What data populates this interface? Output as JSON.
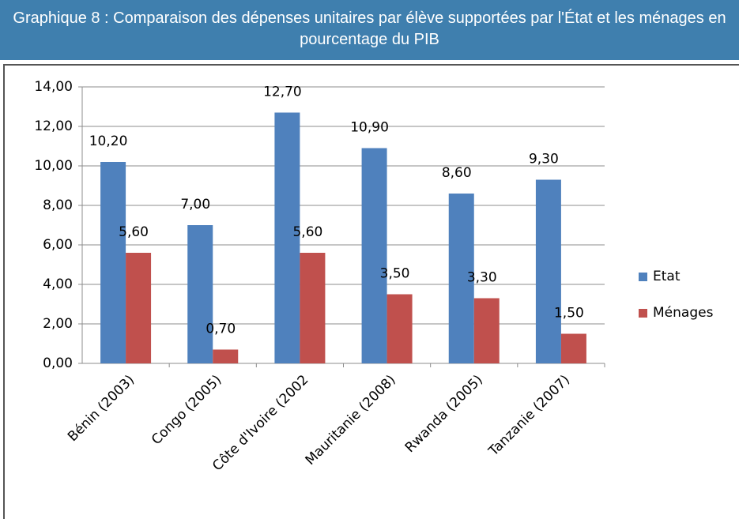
{
  "chart_data": {
    "type": "bar",
    "title": "Graphique 8 : Comparaison des dépenses unitaires par élève supportées par l'État et les ménages en pourcentage du PIB",
    "categories": [
      "Bénin (2003)",
      "Congo (2005)",
      "Côte d'Ivoire (2002",
      "Mauritanie (2008)",
      "Rwanda (2005)",
      "Tanzanie (2007)"
    ],
    "series": [
      {
        "name": "Etat",
        "color": "#4f81bd",
        "values": [
          10.2,
          7.0,
          12.7,
          10.9,
          8.6,
          9.3
        ],
        "value_labels": [
          "10,20",
          "7,00",
          "12,70",
          "10,90",
          "8,60",
          "9,30"
        ]
      },
      {
        "name": "Ménages",
        "color": "#c0504d",
        "values": [
          5.6,
          0.7,
          5.6,
          3.5,
          3.3,
          1.5
        ],
        "value_labels": [
          "5,60",
          "0,70",
          "5,60",
          "3,50",
          "3,30",
          "1,50"
        ]
      }
    ],
    "ylim": [
      0,
      14
    ],
    "yticks": [
      {
        "value": 0,
        "label": "0,00"
      },
      {
        "value": 2,
        "label": "2,00"
      },
      {
        "value": 4,
        "label": "4,00"
      },
      {
        "value": 6,
        "label": "6,00"
      },
      {
        "value": 8,
        "label": "8,00"
      },
      {
        "value": 10,
        "label": "10,00"
      },
      {
        "value": 12,
        "label": "12,00"
      },
      {
        "value": 14,
        "label": "14,00"
      }
    ],
    "grid": true,
    "legend": "right"
  }
}
